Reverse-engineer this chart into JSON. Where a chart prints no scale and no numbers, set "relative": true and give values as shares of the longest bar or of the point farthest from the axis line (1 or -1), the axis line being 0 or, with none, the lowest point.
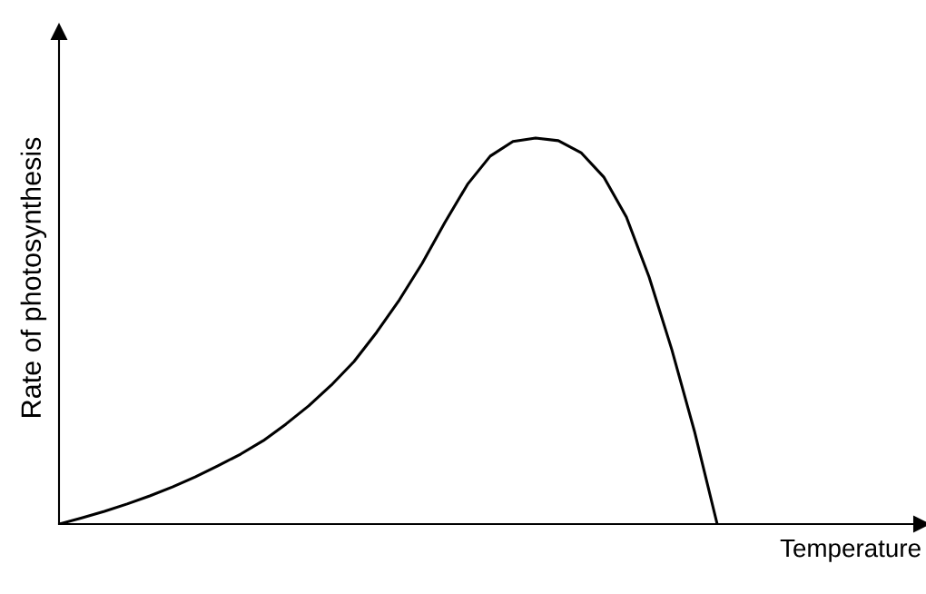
{
  "chart_data": {
    "type": "line",
    "relative": true,
    "xlabel": "Temperature",
    "ylabel": "Rate of photosynthesis",
    "categories": [
      null,
      null,
      null,
      null,
      null,
      null,
      null,
      null,
      null,
      null,
      null,
      null,
      null,
      null,
      null,
      null,
      null,
      null,
      null,
      null,
      null,
      null,
      null,
      null,
      null,
      null,
      null,
      null,
      null,
      null,
      null,
      null,
      null,
      null,
      null,
      null,
      null,
      null,
      null
    ],
    "series": [
      {
        "color": "#000000",
        "values": [
          0,
          0.016,
          0.033,
          0.052,
          0.073,
          0.096,
          0.122,
          0.151,
          0.181,
          0.216,
          0.259,
          0.306,
          0.36,
          0.421,
          0.497,
          0.581,
          0.675,
          0.781,
          0.88,
          0.953,
          0.991,
          1,
          0.993,
          0.962,
          0.899,
          0.795,
          0.64,
          0.452,
          0.24,
          0,
          null,
          null,
          null,
          null,
          null,
          null,
          null,
          null,
          null
        ]
      }
    ],
    "grid": false,
    "legend": false,
    "marker": "none",
    "line_style": "solid"
  }
}
